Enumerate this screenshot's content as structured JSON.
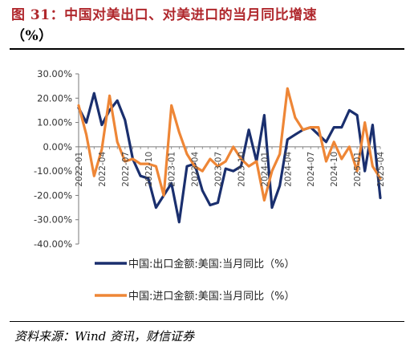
{
  "figure": {
    "title": "图 31：中国对美出口、对美进口的当月同比增速",
    "unit": "（%）",
    "source": "资料来源：Wind 资讯，财信证券"
  },
  "colors": {
    "export": "#1a2f6e",
    "import": "#ee8636",
    "axis": "#7a7a7a"
  },
  "chart_data": {
    "type": "line",
    "ylim": [
      -40,
      30
    ],
    "yticks": [
      30,
      20,
      10,
      0,
      -10,
      -20,
      -30,
      -40
    ],
    "ytick_labels": [
      "30.00%",
      "20.00%",
      "10.00%",
      "0.00%",
      "-10.00%",
      "-20.00%",
      "-30.00%",
      "-40.00%"
    ],
    "grid": false,
    "legend_position": "bottom",
    "x": [
      "2022-01",
      "2022-02",
      "2022-03",
      "2022-04",
      "2022-05",
      "2022-06",
      "2022-07",
      "2022-08",
      "2022-09",
      "2022-10",
      "2022-11",
      "2022-12",
      "2023-01",
      "2023-02",
      "2023-03",
      "2023-04",
      "2023-05",
      "2023-06",
      "2023-07",
      "2023-08",
      "2023-09",
      "2023-10",
      "2023-11",
      "2023-12",
      "2024-01",
      "2024-02",
      "2024-03",
      "2024-04",
      "2024-05",
      "2024-06",
      "2024-07",
      "2024-08",
      "2024-09",
      "2024-10",
      "2024-11",
      "2024-12",
      "2025-01",
      "2025-02",
      "2025-03",
      "2025-04"
    ],
    "x_tick_labels": [
      "2022-01",
      "2022-04",
      "2022-07",
      "2022-10",
      "2023-01",
      "2023-04",
      "2023-07",
      "2023-10",
      "2024-01",
      "2024-04",
      "2024-07",
      "2024-10",
      "2025-01",
      "2025-04"
    ],
    "series": [
      {
        "name": "中国:出口金额:美国:当月同比（%）",
        "values": [
          16,
          10,
          22,
          9,
          15,
          19,
          11,
          -5,
          -12,
          -13,
          -25,
          -20,
          -15,
          -31,
          -8,
          -7,
          -18,
          -24,
          -23,
          -9,
          -10,
          -8,
          7,
          -6,
          13,
          -25,
          -16,
          3,
          5,
          7,
          8,
          5,
          2,
          8,
          8,
          15,
          13,
          -10,
          9,
          -21
        ]
      },
      {
        "name": "中国:进口金额:美国:当月同比（%）",
        "values": [
          17,
          5,
          -12,
          -1,
          21,
          2,
          -6,
          -5,
          -7,
          -7,
          -8,
          -20,
          17,
          6,
          -3,
          -8,
          -10,
          -5,
          -8,
          -6,
          0,
          -5,
          -8,
          -6,
          -22,
          -10,
          -3,
          24,
          12,
          7,
          8,
          8,
          -6,
          2,
          -5,
          0,
          -10,
          10,
          -8,
          -13
        ]
      }
    ]
  }
}
